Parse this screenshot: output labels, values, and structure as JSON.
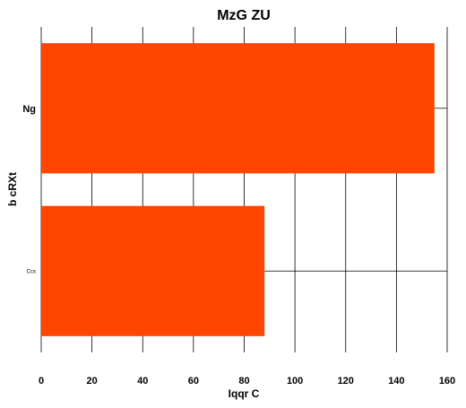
{
  "chart_data": {
    "type": "bar",
    "orientation": "horizontal",
    "title": "MzG ZU",
    "xlabel": "Iqqr C",
    "ylabel": "b cRXt",
    "categories": [
      "Ng",
      "Ccx"
    ],
    "values": [
      155,
      88
    ],
    "xlim": [
      0,
      160
    ],
    "xticks": [
      0,
      20,
      40,
      60,
      80,
      100,
      120,
      140,
      160
    ],
    "grid": true,
    "bar_color": "#ff4500"
  }
}
